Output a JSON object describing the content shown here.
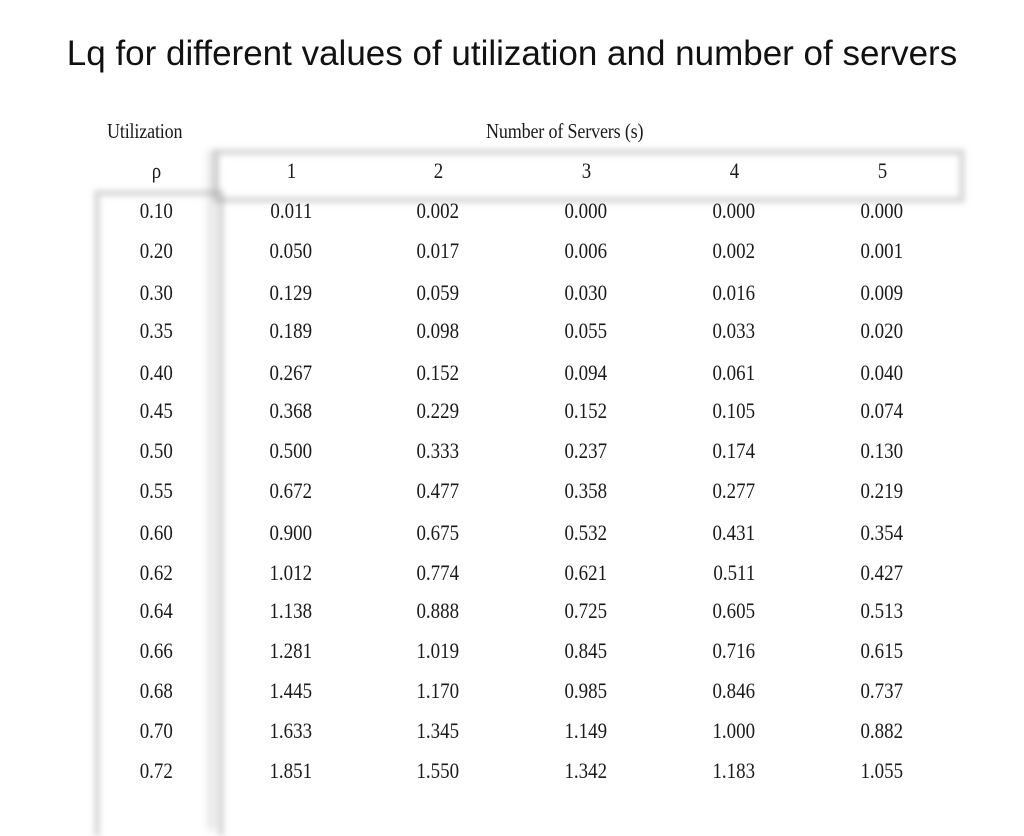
{
  "title": "Lq for different values of utilization and number of servers",
  "table": {
    "utilization_header": "Utilization",
    "servers_header": "Number of Servers (s)",
    "rho_label": "ρ",
    "server_columns": [
      "1",
      "2",
      "3",
      "4",
      "5"
    ],
    "rows": [
      {
        "rho": "0.10",
        "values": [
          "0.011",
          "0.002",
          "0.000",
          "0.000",
          "0.000"
        ]
      },
      {
        "rho": "0.20",
        "values": [
          "0.050",
          "0.017",
          "0.006",
          "0.002",
          "0.001"
        ]
      },
      {
        "rho": "0.30",
        "values": [
          "0.129",
          "0.059",
          "0.030",
          "0.016",
          "0.009"
        ]
      },
      {
        "rho": "0.35",
        "values": [
          "0.189",
          "0.098",
          "0.055",
          "0.033",
          "0.020"
        ]
      },
      {
        "rho": "0.40",
        "values": [
          "0.267",
          "0.152",
          "0.094",
          "0.061",
          "0.040"
        ]
      },
      {
        "rho": "0.45",
        "values": [
          "0.368",
          "0.229",
          "0.152",
          "0.105",
          "0.074"
        ]
      },
      {
        "rho": "0.50",
        "values": [
          "0.500",
          "0.333",
          "0.237",
          "0.174",
          "0.130"
        ]
      },
      {
        "rho": "0.55",
        "values": [
          "0.672",
          "0.477",
          "0.358",
          "0.277",
          "0.219"
        ]
      },
      {
        "rho": "0.60",
        "values": [
          "0.900",
          "0.675",
          "0.532",
          "0.431",
          "0.354"
        ]
      },
      {
        "rho": "0.62",
        "values": [
          "1.012",
          "0.774",
          "0.621",
          "0.511",
          "0.427"
        ]
      },
      {
        "rho": "0.64",
        "values": [
          "1.138",
          "0.888",
          "0.725",
          "0.605",
          "0.513"
        ]
      },
      {
        "rho": "0.66",
        "values": [
          "1.281",
          "1.019",
          "0.845",
          "0.716",
          "0.615"
        ]
      },
      {
        "rho": "0.68",
        "values": [
          "1.445",
          "1.170",
          "0.985",
          "0.846",
          "0.737"
        ]
      },
      {
        "rho": "0.70",
        "values": [
          "1.633",
          "1.345",
          "1.149",
          "1.000",
          "0.882"
        ]
      },
      {
        "rho": "0.72",
        "values": [
          "1.851",
          "1.550",
          "1.342",
          "1.183",
          "1.055"
        ]
      }
    ]
  }
}
